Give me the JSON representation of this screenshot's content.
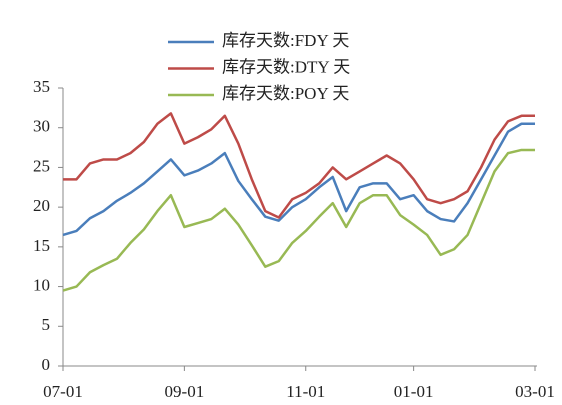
{
  "chart_data": {
    "type": "line",
    "categories": [
      "07-01",
      null,
      null,
      null,
      null,
      null,
      null,
      null,
      null,
      "09-01",
      null,
      null,
      null,
      null,
      null,
      null,
      null,
      null,
      "11-01",
      null,
      null,
      null,
      null,
      null,
      null,
      null,
      "01-01",
      null,
      null,
      null,
      null,
      null,
      null,
      null,
      null,
      "03-01"
    ],
    "series": [
      {
        "name": "库存天数:FDY 天",
        "color": "#4a7ebb",
        "values": [
          16.5,
          17,
          18.6,
          19.5,
          20.8,
          21.8,
          23,
          24.5,
          26,
          24,
          24.6,
          25.5,
          26.8,
          23.3,
          21,
          18.8,
          18.3,
          20,
          21,
          22.5,
          23.8,
          19.5,
          22.5,
          23,
          23,
          21,
          21.5,
          19.5,
          18.5,
          18.2,
          20.5,
          23.5,
          26.5,
          29.5,
          30.5,
          30.5
        ]
      },
      {
        "name": "库存天数:DTY 天",
        "color": "#be4b48",
        "values": [
          23.5,
          23.5,
          25.5,
          26,
          26,
          26.8,
          28.2,
          30.5,
          31.8,
          28,
          28.8,
          29.8,
          31.5,
          28,
          23.5,
          19.5,
          18.7,
          21,
          21.8,
          23,
          25,
          23.5,
          24.5,
          25.5,
          26.5,
          25.5,
          23.5,
          21,
          20.5,
          21,
          22,
          25,
          28.5,
          30.8,
          31.5,
          31.5
        ]
      },
      {
        "name": "库存天数:POY 天",
        "color": "#98b954",
        "values": [
          9.5,
          10,
          11.8,
          12.7,
          13.5,
          15.5,
          17.2,
          19.5,
          21.5,
          17.5,
          18,
          18.5,
          19.8,
          17.8,
          15.2,
          12.5,
          13.2,
          15.5,
          17,
          18.8,
          20.5,
          17.5,
          20.5,
          21.5,
          21.5,
          19,
          17.8,
          16.5,
          14,
          14.7,
          16.5,
          20.5,
          24.5,
          26.8,
          27.2,
          27.2
        ]
      }
    ],
    "ylim": [
      0,
      35
    ],
    "yticks": [
      0,
      5,
      10,
      15,
      20,
      25,
      30,
      35
    ],
    "legend": "top"
  }
}
